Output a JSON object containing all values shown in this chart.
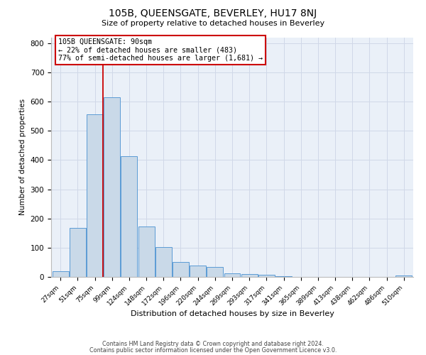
{
  "title": "105B, QUEENSGATE, BEVERLEY, HU17 8NJ",
  "subtitle": "Size of property relative to detached houses in Beverley",
  "xlabel": "Distribution of detached houses by size in Beverley",
  "ylabel": "Number of detached properties",
  "bar_labels": [
    "27sqm",
    "51sqm",
    "75sqm",
    "99sqm",
    "124sqm",
    "148sqm",
    "172sqm",
    "196sqm",
    "220sqm",
    "244sqm",
    "269sqm",
    "293sqm",
    "317sqm",
    "341sqm",
    "365sqm",
    "389sqm",
    "413sqm",
    "438sqm",
    "462sqm",
    "486sqm",
    "510sqm"
  ],
  "bar_values": [
    20,
    168,
    557,
    615,
    414,
    172,
    101,
    50,
    40,
    33,
    12,
    10,
    7,
    2,
    1,
    0,
    0,
    0,
    0,
    0,
    5
  ],
  "bar_color": "#c9d9e8",
  "bar_edge_color": "#5b9bd5",
  "vline_color": "#cc0000",
  "annotation_text": "105B QUEENSGATE: 90sqm\n← 22% of detached houses are smaller (483)\n77% of semi-detached houses are larger (1,681) →",
  "annotation_box_color": "#ffffff",
  "annotation_box_edge_color": "#cc0000",
  "ylim": [
    0,
    820
  ],
  "yticks": [
    0,
    100,
    200,
    300,
    400,
    500,
    600,
    700,
    800
  ],
  "footer1": "Contains HM Land Registry data © Crown copyright and database right 2024.",
  "footer2": "Contains public sector information licensed under the Open Government Licence v3.0.",
  "grid_color": "#d0d8e8",
  "background_color": "#eaf0f8"
}
